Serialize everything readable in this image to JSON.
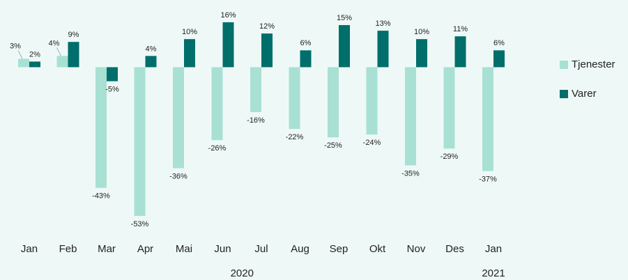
{
  "chart_data": {
    "type": "bar",
    "categories": [
      "Jan",
      "Feb",
      "Mar",
      "Apr",
      "Mai",
      "Jun",
      "Jul",
      "Aug",
      "Sep",
      "Okt",
      "Nov",
      "Des",
      "Jan"
    ],
    "year_labels": [
      "2020",
      "2021"
    ],
    "series": [
      {
        "name": "Tjenester",
        "color": "#a8e0d4",
        "values": [
          3,
          4,
          -43,
          -53,
          -36,
          -26,
          -16,
          -22,
          -25,
          -24,
          -35,
          -29,
          -37
        ],
        "value_labels": [
          "3%",
          "4%",
          "-43%",
          "-53%",
          "-36%",
          "-26%",
          "-16%",
          "-22%",
          "-25%",
          "-24%",
          "-35%",
          "-29%",
          "-37%"
        ]
      },
      {
        "name": "Varer",
        "color": "#006e6a",
        "values": [
          2,
          9,
          -5,
          4,
          10,
          16,
          12,
          6,
          15,
          13,
          10,
          11,
          6
        ],
        "value_labels": [
          "2%",
          "9%",
          "-5%",
          "4%",
          "10%",
          "16%",
          "12%",
          "6%",
          "15%",
          "13%",
          "10%",
          "11%",
          "6%"
        ]
      }
    ],
    "legend": "right"
  }
}
